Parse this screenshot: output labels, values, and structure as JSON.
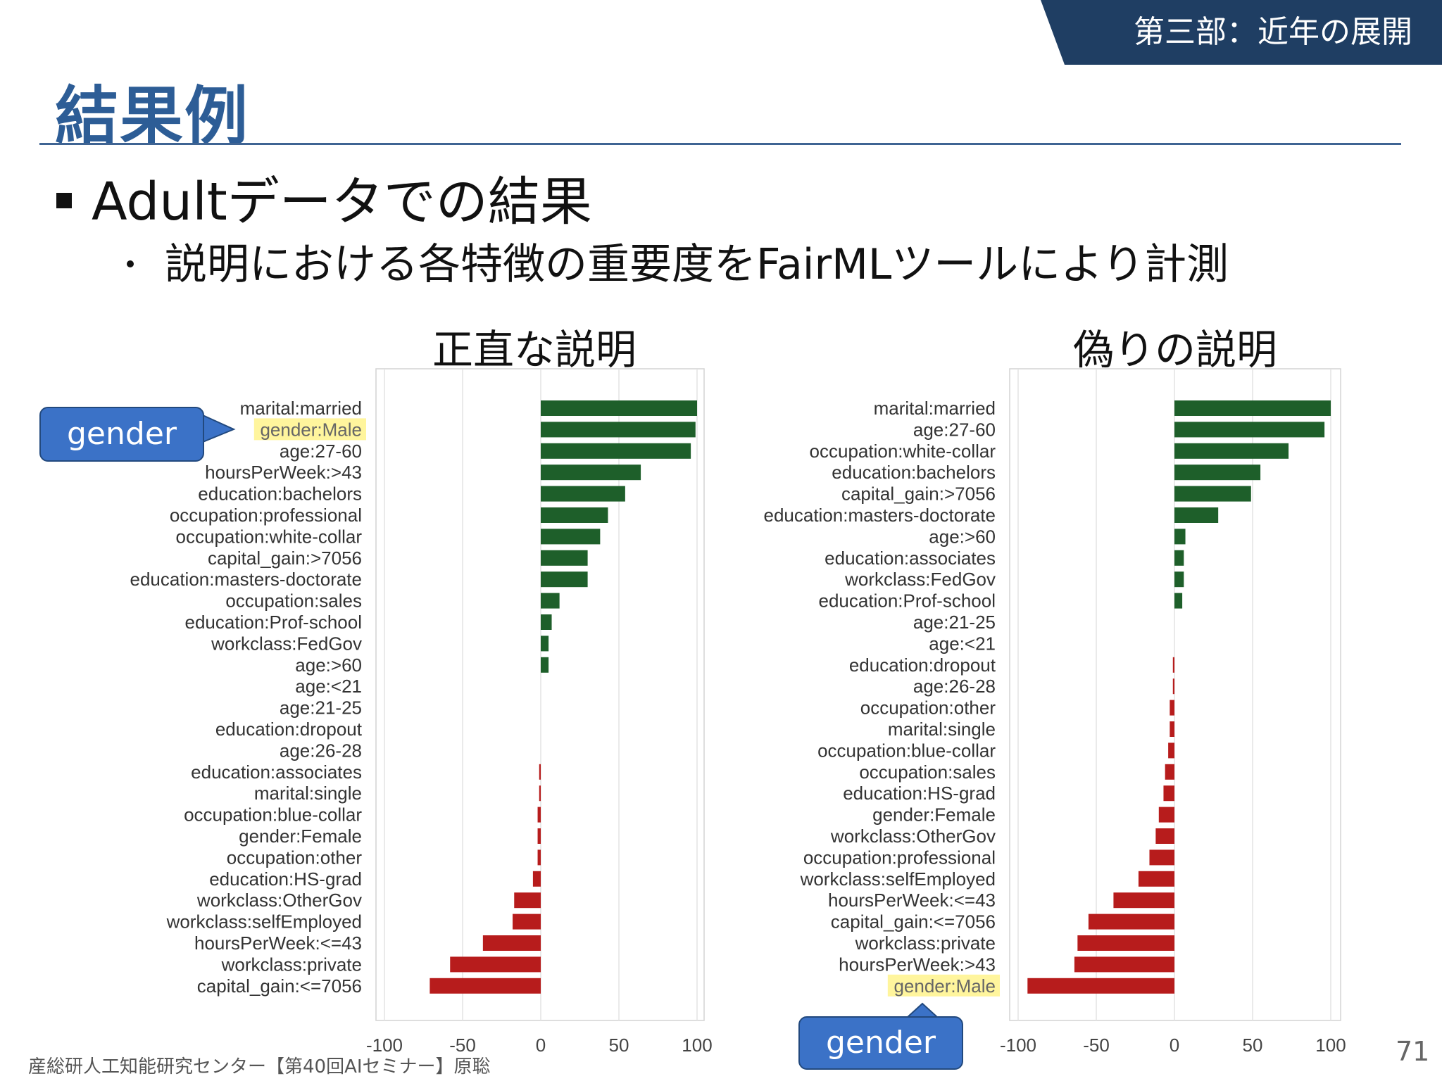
{
  "header": {
    "section_tab": "第三部：近年の展開",
    "title": "結果例"
  },
  "bullets": {
    "level1": "Adultデータでの結果",
    "level2": "説明における各特徴の重要度をFairMLツールにより計測"
  },
  "callouts": {
    "left": "gender",
    "right": "gender"
  },
  "footer": {
    "credit": "産総研人工知能研究センター【第40回AIセミナー】原聡",
    "page_number": "71"
  },
  "colors": {
    "positive": "#1e5f2a",
    "negative": "#b71c1c",
    "highlight": "#fff59d",
    "accent": "#2d5d96"
  },
  "chart_data": [
    {
      "type": "bar",
      "orientation": "horizontal",
      "title": "正直な説明",
      "categories": [
        "marital:married",
        "gender:Male",
        "age:27-60",
        "hoursPerWeek:>43",
        "education:bachelors",
        "occupation:professional",
        "occupation:white-collar",
        "capital_gain:>7056",
        "education:masters-doctorate",
        "occupation:sales",
        "education:Prof-school",
        "workclass:FedGov",
        "age:>60",
        "age:<21",
        "age:21-25",
        "education:dropout",
        "age:26-28",
        "education:associates",
        "marital:single",
        "occupation:blue-collar",
        "gender:Female",
        "occupation:other",
        "education:HS-grad",
        "workclass:OtherGov",
        "workclass:selfEmployed",
        "hoursPerWeek:<=43",
        "workclass:private",
        "capital_gain:<=7056"
      ],
      "values": [
        100,
        99,
        96,
        64,
        54,
        43,
        38,
        30,
        30,
        12,
        7,
        5,
        5,
        0,
        0,
        0,
        0,
        -1,
        -1,
        -2,
        -2,
        -2,
        -5,
        -17,
        -18,
        -37,
        -58,
        -71
      ],
      "highlighted": "gender:Male",
      "xlim": [
        -100,
        100
      ],
      "xticks": [
        "-100",
        "-50",
        "0",
        "50",
        "100"
      ]
    },
    {
      "type": "bar",
      "orientation": "horizontal",
      "title": "偽りの説明",
      "categories": [
        "marital:married",
        "age:27-60",
        "occupation:white-collar",
        "education:bachelors",
        "capital_gain:>7056",
        "education:masters-doctorate",
        "age:>60",
        "education:associates",
        "workclass:FedGov",
        "education:Prof-school",
        "age:21-25",
        "age:<21",
        "education:dropout",
        "age:26-28",
        "occupation:other",
        "marital:single",
        "occupation:blue-collar",
        "occupation:sales",
        "education:HS-grad",
        "gender:Female",
        "workclass:OtherGov",
        "occupation:professional",
        "workclass:selfEmployed",
        "hoursPerWeek:<=43",
        "capital_gain:<=7056",
        "workclass:private",
        "hoursPerWeek:>43",
        "gender:Male"
      ],
      "values": [
        100,
        96,
        73,
        55,
        49,
        28,
        7,
        6,
        6,
        5,
        0,
        0,
        -1,
        -1,
        -3,
        -3,
        -4,
        -6,
        -7,
        -10,
        -12,
        -16,
        -23,
        -39,
        -55,
        -62,
        -64,
        -94
      ],
      "highlighted": "gender:Male",
      "xlim": [
        -100,
        100
      ],
      "xticks": [
        "-100",
        "-50",
        "0",
        "50",
        "100"
      ]
    }
  ]
}
